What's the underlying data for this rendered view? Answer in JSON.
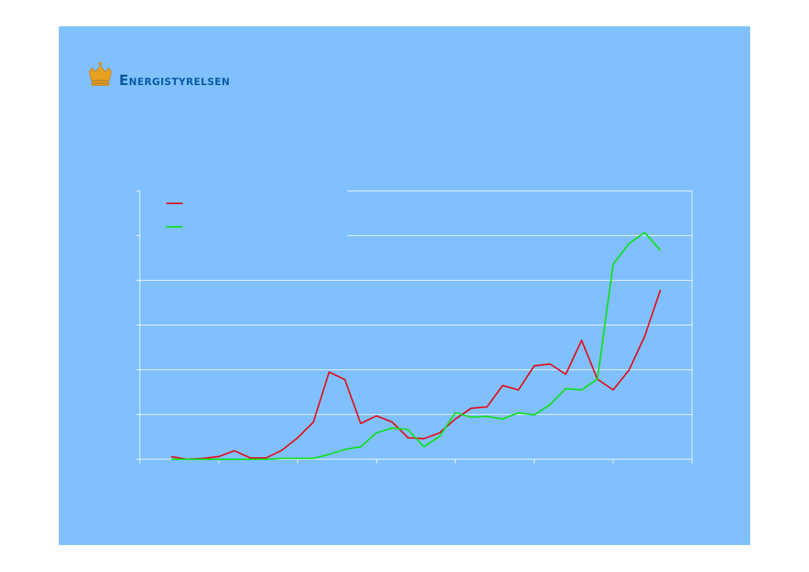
{
  "logo": "Energistyrelsen",
  "chart_data": {
    "type": "line",
    "xlim": [
      0,
      35
    ],
    "xticks": [
      0,
      5,
      10,
      15,
      20,
      25,
      30,
      35
    ],
    "ylim": [
      0,
      6
    ],
    "yticks": [
      0,
      1,
      2,
      3,
      4,
      5,
      6
    ],
    "grid": true,
    "legend": "top-left",
    "x": [
      2,
      3,
      4,
      5,
      6,
      7,
      8,
      9,
      10,
      11,
      12,
      13,
      14,
      15,
      16,
      17,
      18,
      19,
      20,
      21,
      22,
      23,
      24,
      25,
      26,
      27,
      28,
      29,
      30,
      31,
      32,
      33
    ],
    "series": [
      {
        "color": "#e0101c",
        "values": [
          0.06,
          0,
          0.02,
          0.06,
          0.19,
          0.03,
          0.03,
          0.2,
          0.48,
          0.83,
          1.95,
          1.78,
          0.8,
          0.97,
          0.83,
          0.48,
          0.46,
          0.59,
          0.9,
          1.14,
          1.17,
          1.65,
          1.55,
          2.09,
          2.13,
          1.9,
          2.66,
          1.79,
          1.55,
          1.99,
          2.75,
          3.79
        ]
      },
      {
        "color": "#10e020",
        "values": [
          0,
          0,
          0,
          0,
          0,
          0,
          0,
          0.02,
          0.02,
          0.02,
          0.11,
          0.22,
          0.28,
          0.59,
          0.7,
          0.66,
          0.28,
          0.51,
          1.04,
          0.94,
          0.96,
          0.9,
          1.04,
          0.99,
          1.22,
          1.58,
          1.55,
          1.79,
          4.36,
          4.82,
          5.07,
          4.67
        ]
      }
    ]
  }
}
